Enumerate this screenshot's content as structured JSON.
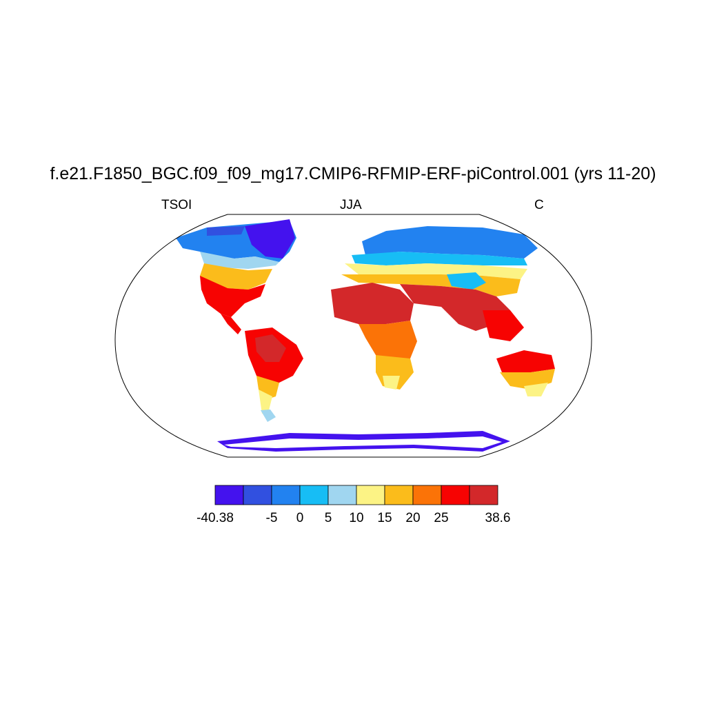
{
  "title": "f.e21.F1850_BGC.f09_f09_mg17.CMIP6-RFMIP-ERF-piControl.001 (yrs 11-20)",
  "subtitle": {
    "left": "TSOI",
    "center": "JJA",
    "right": "C"
  },
  "colorbar": {
    "colors": [
      "#4412ee",
      "#3150e0",
      "#2282f0",
      "#17bdf5",
      "#a0d6f0",
      "#fcf385",
      "#fbbc1b",
      "#fb7307",
      "#f70302",
      "#d3282a"
    ],
    "labels": [
      "-40.38",
      "-5",
      "0",
      "5",
      "10",
      "15",
      "20",
      "25",
      "38.6"
    ]
  },
  "chart_data": {
    "type": "heatmap",
    "variable": "TSOI",
    "season": "JJA",
    "units": "C",
    "value_range": [
      -40.38,
      38.6
    ],
    "levels": [
      -5,
      0,
      5,
      10,
      15,
      20,
      25
    ],
    "colors": [
      "#4412ee",
      "#3150e0",
      "#2282f0",
      "#17bdf5",
      "#a0d6f0",
      "#fcf385",
      "#fbbc1b",
      "#fb7307",
      "#f70302",
      "#d3282a"
    ]
  }
}
